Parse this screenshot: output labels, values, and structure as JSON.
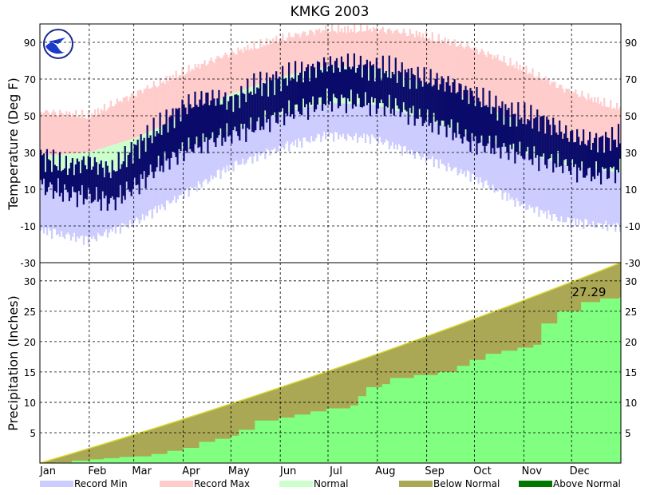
{
  "chart_data": {
    "type": "area",
    "title": "KMKG 2003",
    "months": [
      "Jan",
      "Feb",
      "Mar",
      "Apr",
      "May",
      "Jun",
      "Jul",
      "Aug",
      "Sep",
      "Oct",
      "Nov",
      "Dec"
    ],
    "legend": [
      {
        "label": "Record Min",
        "color": "#ccccff"
      },
      {
        "label": "Record Max",
        "color": "#ffcccc"
      },
      {
        "label": "Normal",
        "color": "#ccffcc"
      },
      {
        "label": "Below Normal",
        "color": "#aaa855"
      },
      {
        "label": "Above Normal",
        "color": "#007700"
      }
    ],
    "temperature": {
      "ylabel": "Temperature (Deg F)",
      "ylim": [
        -30,
        100
      ],
      "ticks": [
        -30,
        -10,
        10,
        30,
        50,
        70,
        90
      ],
      "record_max_anchor": [
        [
          0,
          50
        ],
        [
          30,
          48
        ],
        [
          60,
          60
        ],
        [
          90,
          72
        ],
        [
          120,
          82
        ],
        [
          150,
          90
        ],
        [
          180,
          95
        ],
        [
          210,
          95
        ],
        [
          240,
          92
        ],
        [
          270,
          85
        ],
        [
          300,
          75
        ],
        [
          330,
          62
        ],
        [
          364,
          52
        ]
      ],
      "normal_high_anchor": [
        [
          0,
          28
        ],
        [
          30,
          30
        ],
        [
          60,
          38
        ],
        [
          90,
          50
        ],
        [
          120,
          62
        ],
        [
          150,
          71
        ],
        [
          180,
          77
        ],
        [
          210,
          76
        ],
        [
          240,
          68
        ],
        [
          270,
          58
        ],
        [
          300,
          47
        ],
        [
          330,
          35
        ],
        [
          364,
          29
        ]
      ],
      "normal_low_anchor": [
        [
          0,
          18
        ],
        [
          30,
          17
        ],
        [
          60,
          22
        ],
        [
          90,
          32
        ],
        [
          120,
          42
        ],
        [
          150,
          51
        ],
        [
          180,
          57
        ],
        [
          210,
          56
        ],
        [
          240,
          49
        ],
        [
          270,
          39
        ],
        [
          300,
          31
        ],
        [
          330,
          23
        ],
        [
          364,
          19
        ]
      ],
      "record_min_anchor": [
        [
          0,
          -10
        ],
        [
          30,
          -15
        ],
        [
          60,
          -5
        ],
        [
          90,
          10
        ],
        [
          120,
          25
        ],
        [
          150,
          35
        ],
        [
          180,
          42
        ],
        [
          210,
          40
        ],
        [
          240,
          30
        ],
        [
          270,
          20
        ],
        [
          300,
          5
        ],
        [
          330,
          -5
        ],
        [
          364,
          -8
        ]
      ],
      "observed_high_anchor": [
        [
          0,
          28
        ],
        [
          15,
          22
        ],
        [
          30,
          25
        ],
        [
          45,
          20
        ],
        [
          60,
          33
        ],
        [
          75,
          44
        ],
        [
          90,
          55
        ],
        [
          105,
          60
        ],
        [
          120,
          58
        ],
        [
          135,
          66
        ],
        [
          150,
          70
        ],
        [
          165,
          74
        ],
        [
          180,
          78
        ],
        [
          195,
          78
        ],
        [
          210,
          76
        ],
        [
          225,
          74
        ],
        [
          240,
          70
        ],
        [
          255,
          68
        ],
        [
          270,
          62
        ],
        [
          285,
          55
        ],
        [
          300,
          50
        ],
        [
          315,
          48
        ],
        [
          330,
          40
        ],
        [
          345,
          36
        ],
        [
          364,
          38
        ]
      ],
      "observed_low_anchor": [
        [
          0,
          14
        ],
        [
          15,
          10
        ],
        [
          30,
          8
        ],
        [
          45,
          5
        ],
        [
          60,
          14
        ],
        [
          75,
          25
        ],
        [
          90,
          33
        ],
        [
          105,
          38
        ],
        [
          120,
          42
        ],
        [
          135,
          46
        ],
        [
          150,
          52
        ],
        [
          165,
          56
        ],
        [
          180,
          60
        ],
        [
          195,
          60
        ],
        [
          210,
          58
        ],
        [
          225,
          56
        ],
        [
          240,
          50
        ],
        [
          255,
          46
        ],
        [
          270,
          38
        ],
        [
          285,
          35
        ],
        [
          300,
          32
        ],
        [
          315,
          28
        ],
        [
          330,
          25
        ],
        [
          345,
          20
        ],
        [
          364,
          22
        ]
      ]
    },
    "precipitation": {
      "ylabel": "Precipitation (Inches)",
      "ylim": [
        0,
        33
      ],
      "ticks": [
        5,
        10,
        15,
        20,
        25,
        30
      ],
      "normal_total": 33.0,
      "observed_total_label": "27.29",
      "observed_cumulative": [
        [
          0,
          0
        ],
        [
          10,
          0.1
        ],
        [
          20,
          0.4
        ],
        [
          31,
          0.6
        ],
        [
          40,
          0.8
        ],
        [
          50,
          1.0
        ],
        [
          59,
          1.1
        ],
        [
          70,
          1.5
        ],
        [
          80,
          2.0
        ],
        [
          90,
          2.5
        ],
        [
          100,
          3.5
        ],
        [
          110,
          4.0
        ],
        [
          120,
          4.5
        ],
        [
          125,
          5.5
        ],
        [
          135,
          7.0
        ],
        [
          150,
          7.5
        ],
        [
          160,
          8.0
        ],
        [
          170,
          8.5
        ],
        [
          180,
          9.0
        ],
        [
          195,
          9.5
        ],
        [
          200,
          11.0
        ],
        [
          205,
          12.5
        ],
        [
          215,
          13.0
        ],
        [
          220,
          14.0
        ],
        [
          235,
          14.5
        ],
        [
          250,
          15.0
        ],
        [
          262,
          16.0
        ],
        [
          270,
          17.0
        ],
        [
          280,
          18.0
        ],
        [
          290,
          18.5
        ],
        [
          300,
          19.0
        ],
        [
          310,
          19.5
        ],
        [
          315,
          23.0
        ],
        [
          325,
          25.0
        ],
        [
          340,
          26.5
        ],
        [
          352,
          27.1
        ],
        [
          364,
          27.29
        ]
      ]
    }
  }
}
